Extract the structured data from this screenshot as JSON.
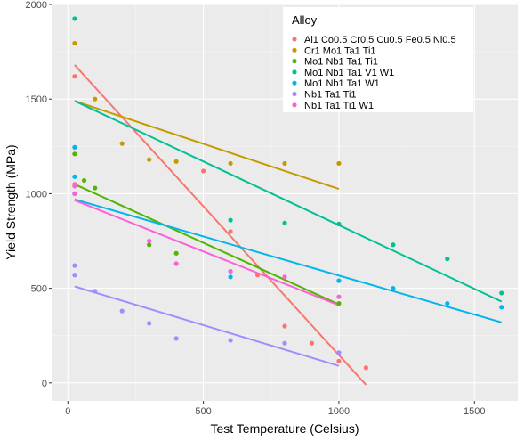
{
  "chart_data": {
    "type": "scatter",
    "title": "",
    "xlabel": "Test Temperature (Celsius)",
    "ylabel": "Yield Strength (MPa)",
    "xlim": [
      -60,
      1660
    ],
    "ylim": [
      -95,
      2000
    ],
    "x_ticks": [
      0,
      500,
      1000,
      1500
    ],
    "y_ticks": [
      0,
      500,
      1000,
      1500,
      2000
    ],
    "grid": true,
    "legend": {
      "title": "Alloy",
      "position": "top-right"
    },
    "series": [
      {
        "name": "Al1 Co0.5 Cr0.5 Cu0.5 Fe0.5 Ni0.5",
        "color": "#F8766D",
        "points": [
          [
            25,
            1620
          ],
          [
            25,
            1050
          ],
          [
            500,
            1120
          ],
          [
            600,
            800
          ],
          [
            700,
            570
          ],
          [
            800,
            300
          ],
          [
            900,
            210
          ],
          [
            1000,
            115
          ],
          [
            1100,
            80
          ]
        ],
        "fit": [
          [
            25,
            1680
          ],
          [
            1100,
            -10
          ]
        ]
      },
      {
        "name": "Cr1 Mo1 Ta1 Ti1",
        "color": "#C49A00",
        "points": [
          [
            25,
            1795
          ],
          [
            100,
            1500
          ],
          [
            200,
            1265
          ],
          [
            300,
            1180
          ],
          [
            400,
            1170
          ],
          [
            600,
            1160
          ],
          [
            800,
            1160
          ],
          [
            1000,
            1160
          ]
        ],
        "fit": [
          [
            25,
            1490
          ],
          [
            1000,
            1025
          ]
        ]
      },
      {
        "name": "Mo1 Nb1 Ta1 Ti1",
        "color": "#53B400",
        "points": [
          [
            25,
            1210
          ],
          [
            60,
            1070
          ],
          [
            100,
            1030
          ],
          [
            300,
            730
          ],
          [
            400,
            685
          ],
          [
            1000,
            420
          ]
        ],
        "fit": [
          [
            25,
            1050
          ],
          [
            1000,
            415
          ]
        ]
      },
      {
        "name": "Mo1 Nb1 Ta1 V1 W1",
        "color": "#00C094",
        "points": [
          [
            25,
            1925
          ],
          [
            600,
            860
          ],
          [
            800,
            845
          ],
          [
            1000,
            840
          ],
          [
            1200,
            730
          ],
          [
            1400,
            655
          ],
          [
            1600,
            475
          ]
        ],
        "fit": [
          [
            25,
            1490
          ],
          [
            1600,
            430
          ]
        ]
      },
      {
        "name": "Mo1 Nb1 Ta1 W1",
        "color": "#00B6EB",
        "points": [
          [
            25,
            1245
          ],
          [
            25,
            1090
          ],
          [
            25,
            1000
          ],
          [
            600,
            560
          ],
          [
            1000,
            540
          ],
          [
            1200,
            500
          ],
          [
            1400,
            420
          ],
          [
            1600,
            400
          ]
        ],
        "fit": [
          [
            25,
            970
          ],
          [
            1600,
            320
          ]
        ]
      },
      {
        "name": "Nb1 Ta1 Ti1",
        "color": "#A58AFF",
        "points": [
          [
            25,
            620
          ],
          [
            25,
            570
          ],
          [
            100,
            485
          ],
          [
            200,
            380
          ],
          [
            300,
            315
          ],
          [
            400,
            235
          ],
          [
            600,
            225
          ],
          [
            800,
            210
          ],
          [
            1000,
            160
          ]
        ],
        "fit": [
          [
            25,
            510
          ],
          [
            1000,
            90
          ]
        ]
      },
      {
        "name": "Nb1 Ta1 Ti1 W1",
        "color": "#FB61D7",
        "points": [
          [
            25,
            1040
          ],
          [
            25,
            1000
          ],
          [
            300,
            750
          ],
          [
            400,
            630
          ],
          [
            600,
            590
          ],
          [
            800,
            560
          ],
          [
            1000,
            455
          ]
        ],
        "fit": [
          [
            25,
            965
          ],
          [
            1000,
            410
          ]
        ]
      }
    ]
  }
}
